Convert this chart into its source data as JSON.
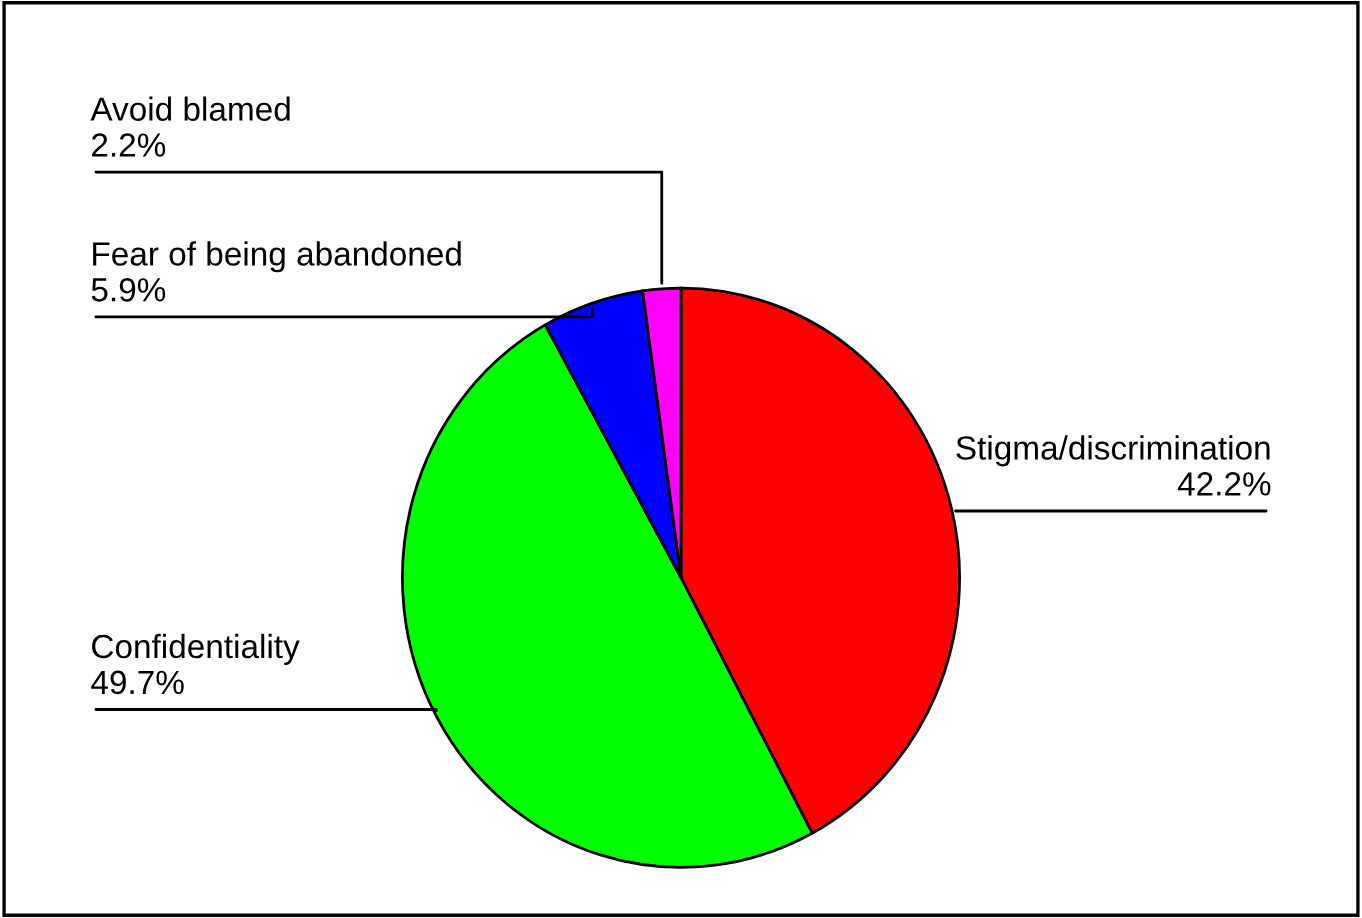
{
  "chart_data": {
    "type": "pie",
    "categories": [
      "Stigma/discrimination",
      "Confidentiality",
      "Fear of being abandoned",
      "Avoid blamed"
    ],
    "values": [
      42.2,
      49.7,
      5.9,
      2.2
    ],
    "value_labels": [
      "42.2%",
      "49.7%",
      "5.9%",
      "2.2%"
    ],
    "colors": [
      "#ff0000",
      "#00ff00",
      "#0000ff",
      "#ff00ff"
    ]
  }
}
